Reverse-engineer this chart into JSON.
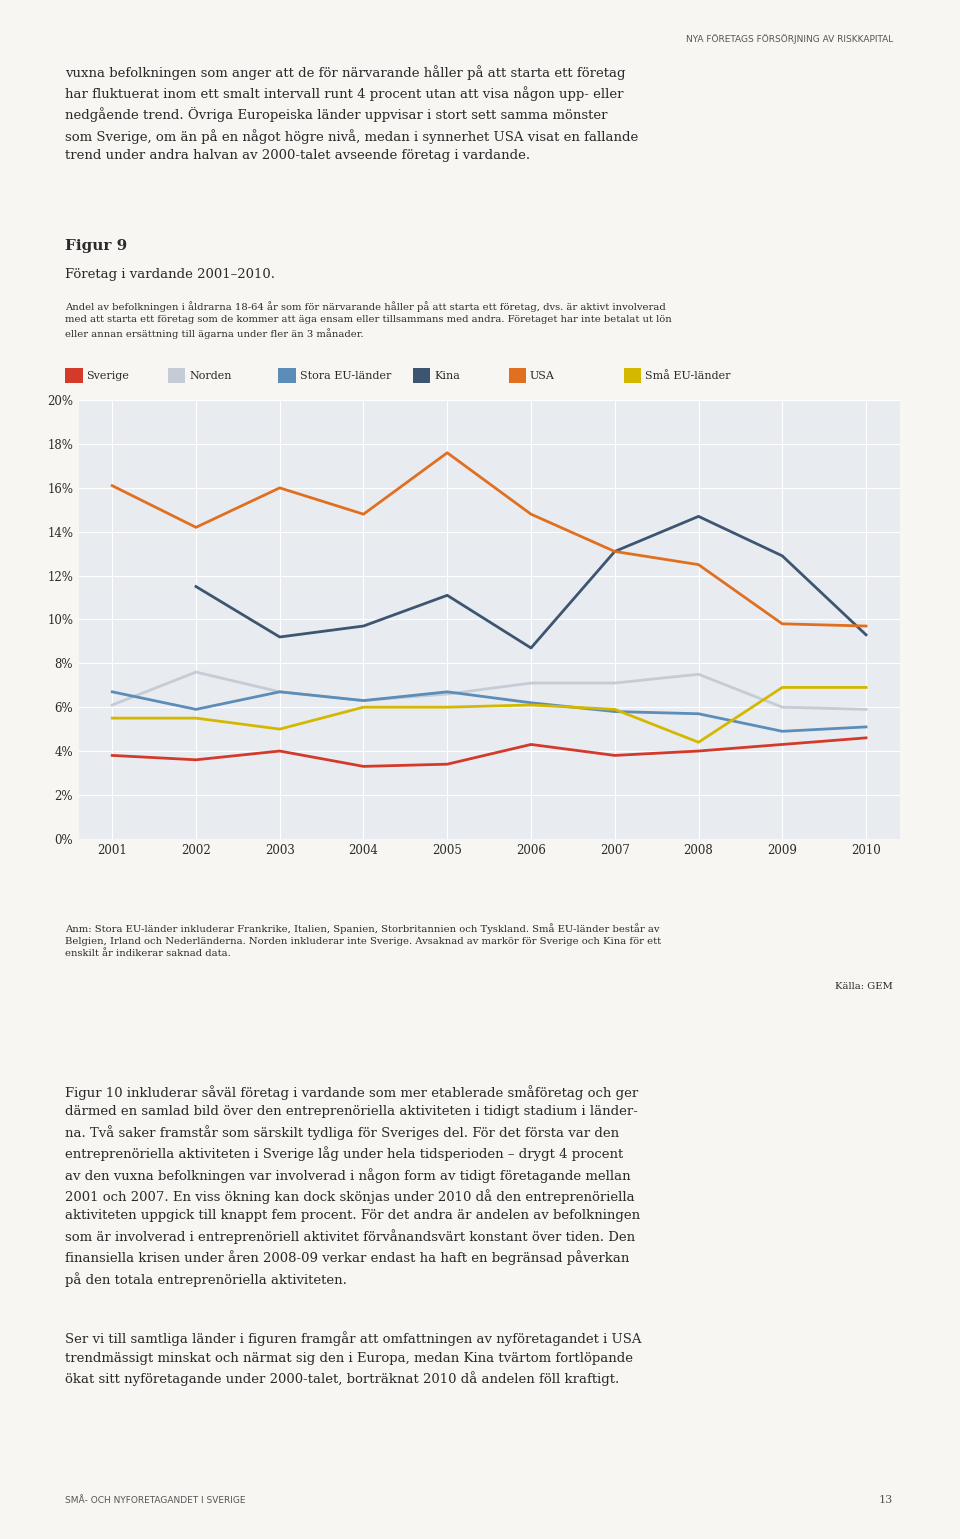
{
  "years": [
    2001,
    2002,
    2003,
    2004,
    2005,
    2006,
    2007,
    2008,
    2009,
    2010
  ],
  "series": {
    "Sverige": {
      "values": [
        3.8,
        3.6,
        4.0,
        3.3,
        3.4,
        4.3,
        3.8,
        4.0,
        4.3,
        4.6
      ],
      "color": "#d43a2a",
      "linewidth": 2.0
    },
    "Norden": {
      "values": [
        6.1,
        7.6,
        6.7,
        6.3,
        6.6,
        7.1,
        7.1,
        7.5,
        6.0,
        5.9
      ],
      "color": "#c5ccd5",
      "linewidth": 2.0
    },
    "Stora EU-länder": {
      "values": [
        6.7,
        5.9,
        6.7,
        6.3,
        6.7,
        6.2,
        5.8,
        5.7,
        4.9,
        5.1
      ],
      "color": "#5b8db8",
      "linewidth": 2.0
    },
    "Kina": {
      "values": [
        null,
        11.5,
        9.2,
        9.7,
        11.1,
        8.7,
        13.1,
        14.7,
        12.9,
        9.3
      ],
      "color": "#3d5570",
      "linewidth": 2.0
    },
    "USA": {
      "values": [
        16.1,
        14.2,
        16.0,
        14.8,
        17.6,
        14.8,
        13.1,
        12.5,
        9.8,
        9.7
      ],
      "color": "#e07020",
      "linewidth": 2.0
    },
    "Små EU-länder": {
      "values": [
        5.5,
        5.5,
        5.0,
        6.0,
        6.0,
        6.1,
        5.9,
        4.4,
        6.9,
        6.9
      ],
      "color": "#d4b800",
      "linewidth": 2.0
    }
  },
  "ylim": [
    0,
    20
  ],
  "yticks": [
    0,
    2,
    4,
    6,
    8,
    10,
    12,
    14,
    16,
    18,
    20
  ],
  "ytick_labels": [
    "0%",
    "2%",
    "4%",
    "6%",
    "8%",
    "10%",
    "12%",
    "14%",
    "16%",
    "18%",
    "20%"
  ],
  "chart_bg": "#e8ecf1",
  "grid_color": "#ffffff",
  "page_bg": "#f7f6f2",
  "legend_order": [
    "Sverige",
    "Norden",
    "Stora EU-länder",
    "Kina",
    "USA",
    "Små EU-länder"
  ],
  "header_text": "NYA FÖRETAGS FÖRSÖRJNING AV RISKKAPITAL",
  "intro_text": "vuxna befolkningen som anger att de för närvarande håller på att starta ett företag\nhar fluktuerat inom ett smalt intervall runt 4 procent utan att visa någon upp- eller\nnedgående trend. Övriga Europeiska länder uppvisar i stort sett samma mönster\nsom Sverige, om än på en något högre nivå, medan i synnerhet USA visat en fallande\ntrend under andra halvan av 2000-talet avseende företag i vardande.",
  "fig_title": "Figur 9",
  "fig_subtitle": "Företag i vardande 2001–2010.",
  "caption": "Andel av befolkningen i åldrarna 18-64 år som för närvarande håller på att starta ett företag, dvs. är aktivt involverad\nmed att starta ett företag som de kommer att äga ensam eller tillsammans med andra. Företaget har inte betalat ut lön\neller annan ersättning till ägarna under fler än 3 månader.",
  "footnote": "Anm: Stora EU-länder inkluderar Frankrike, Italien, Spanien, Storbritannien och Tyskland. Små EU-länder består av\nBelgien, Irland och Nederländerna. Norden inkluderar inte Sverige. Avsaknad av markör för Sverige och Kina för ett\nenskilt år indikerar saknad data.",
  "source": "Källa: GEM",
  "body_text1": "Figur 10 inkluderar såväl företag i vardande som mer etablerade småföretag och ger\ndärmed en samlad bild över den entreprenöriella aktiviteten i tidigt stadium i länder-\nna. Två saker framstår som särskilt tydliga för Sveriges del. För det första var den\nentreprenöriella aktiviteten i Sverige låg under hela tidsperioden – drygt 4 procent\nav den vuxna befolkningen var involverad i någon form av tidigt företagande mellan\n2001 och 2007. En viss ökning kan dock skönjas under 2010 då den entreprenöriella\naktiviteten uppgick till knappt fem procent. För det andra är andelen av befolkningen\nsom är involverad i entreprenöriell aktivitet förvånandsvärt konstant över tiden. Den\nfinansiella krisen under åren 2008-09 verkar endast ha haft en begränsad påverkan\npå den totala entreprenöriella aktiviteten.",
  "body_text2": "Ser vi till samtliga länder i figuren framgår att omfattningen av nyföretagandet i USA\ntrendmässigt minskat och närmat sig den i Europa, medan Kina tvärtom fortlöpande\nökat sitt nyföretagande under 2000-talet, borträknat 2010 då andelen föll kraftigt.",
  "footer_text": "SMÅ- OCH NYFORETAGANDET I SVERIGE",
  "page_num": "13"
}
